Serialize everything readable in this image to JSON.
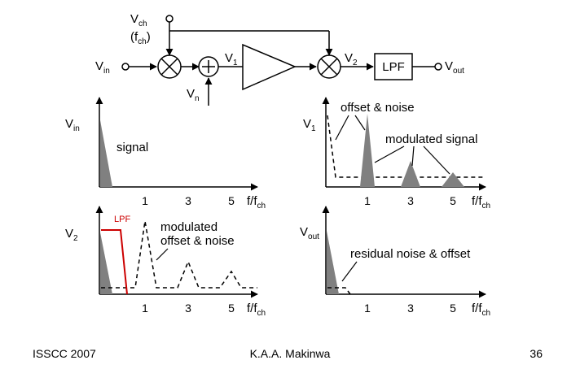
{
  "block_diagram": {
    "vch_label": "V",
    "vch_sub": "ch",
    "fch_open": "(f",
    "fch_sub": "ch",
    "fch_close": ")",
    "vin_label": "V",
    "vin_sub": "in",
    "vn_label": "V",
    "vn_sub": "n",
    "v1_label": "V",
    "v1_sub": "1",
    "v2_label": "V",
    "v2_sub": "2",
    "lpf_label": "LPF",
    "vout_label": "V",
    "vout_sub": "out"
  },
  "plots": {
    "vin": {
      "ylabel": "V",
      "ylabel_sub": "in",
      "annotation": "signal",
      "ticks": [
        "1",
        "3",
        "5"
      ],
      "xlabel": "f/f",
      "xlabel_sub": "ch"
    },
    "v1": {
      "ylabel": "V",
      "ylabel_sub": "1",
      "annotation_noise": "offset & noise",
      "annotation_signal": "modulated signal",
      "ticks": [
        "1",
        "3",
        "5"
      ],
      "xlabel": "f/f",
      "xlabel_sub": "ch"
    },
    "v2": {
      "ylabel": "V",
      "ylabel_sub": "2",
      "lpf_label": "LPF",
      "annotation_line1": "modulated",
      "annotation_line2": "offset & noise",
      "ticks": [
        "1",
        "3",
        "5"
      ],
      "xlabel": "f/f",
      "xlabel_sub": "ch"
    },
    "vout": {
      "ylabel": "V",
      "ylabel_sub": "out",
      "annotation": "residual noise & offset",
      "ticks": [
        "1",
        "3",
        "5"
      ],
      "xlabel": "f/f",
      "xlabel_sub": "ch"
    }
  },
  "footer": {
    "left": "ISSCC 2007",
    "center": "K.A.A. Makinwa",
    "right": "36"
  },
  "colors": {
    "lpf_highlight": "#cc0000",
    "spectrum_fill": "#808080"
  }
}
